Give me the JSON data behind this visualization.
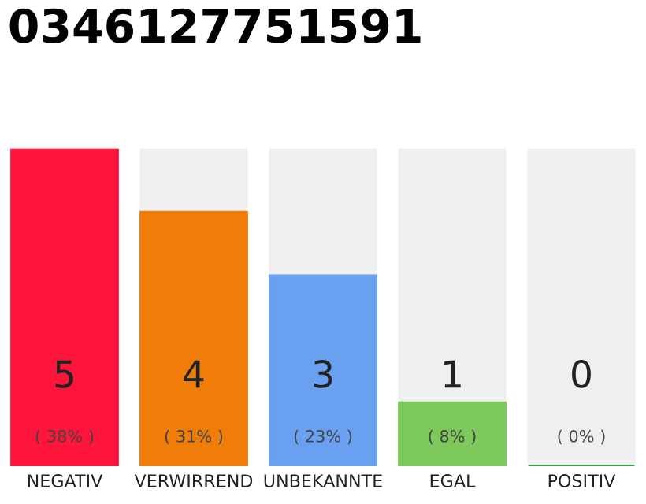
{
  "chart_data": {
    "type": "bar",
    "title": "0346127751591",
    "categories": [
      "NEGATIV",
      "VERWIRREND",
      "UNBEKANNTE",
      "EGAL",
      "POSITIV"
    ],
    "values": [
      5,
      4,
      3,
      1,
      0
    ],
    "colors": [
      "#ff143c",
      "#f07d0a",
      "#6aa0f0",
      "#7dc85a",
      "#28a745"
    ],
    "value_labels": [
      "5\n( 38% )",
      "4\n( 31% )",
      "3\n( 23% )",
      "1\n( 8% )",
      "0\n( 0% )"
    ],
    "ylim": [
      0,
      5
    ],
    "tick_labels": "x",
    "grid": false,
    "legend": false
  }
}
